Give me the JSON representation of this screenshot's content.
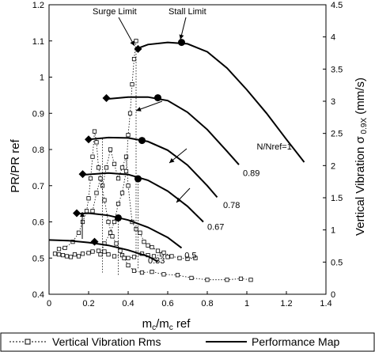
{
  "chart_data": {
    "type": "line",
    "xlabel": "ṁc/ṁc ref",
    "xlabel_main": "m",
    "xlabel_sub": "c",
    "xlabel_mid": "/m",
    "xlabel_sub2": "c",
    "xlabel_end": " ref",
    "ylabel": "PR/PR ref",
    "y2label": "Vertical Vibration σ 0.9X (mm/s)",
    "y2label_main": "Vertical Vibration σ",
    "y2label_sub": " 0.9X",
    "y2label_end": " (mm/s)",
    "xlim": [
      0,
      1.4
    ],
    "ylim": [
      0.4,
      1.2
    ],
    "y2lim": [
      0,
      4.5
    ],
    "x_ticks": [
      "0",
      "0.2",
      "0.4",
      "0.6",
      "0.8",
      "1",
      "1.2",
      "1.4"
    ],
    "y_ticks": [
      "0.4",
      "0.5",
      "0.6",
      "0.7",
      "0.8",
      "0.9",
      "1",
      "1.1",
      "1.2"
    ],
    "y2_ticks": [
      "0",
      "0.5",
      "1",
      "1.5",
      "2",
      "2.5",
      "3",
      "3.5",
      "4",
      "4.5"
    ],
    "speed_lines": [
      {
        "label": "0.33",
        "points": [
          [
            0.0,
            0.55
          ],
          [
            0.1,
            0.548
          ],
          [
            0.2,
            0.543
          ],
          [
            0.3,
            0.535
          ],
          [
            0.4,
            0.522
          ],
          [
            0.5,
            0.505
          ],
          [
            0.55,
            0.49
          ]
        ],
        "surge": [
          0.23,
          0.545
        ],
        "stall": null,
        "label_pos": [
          0.5,
          0.485
        ]
      },
      {
        "label": "0.5",
        "points": [
          [
            0.14,
            0.622
          ],
          [
            0.2,
            0.624
          ],
          [
            0.3,
            0.618
          ],
          [
            0.4,
            0.605
          ],
          [
            0.5,
            0.585
          ],
          [
            0.6,
            0.557
          ],
          [
            0.67,
            0.528
          ]
        ],
        "surge": [
          0.14,
          0.624
        ],
        "stall": [
          0.35,
          0.611
        ],
        "label_pos": [
          0.685,
          0.5
        ]
      },
      {
        "label": "0.67",
        "points": [
          [
            0.17,
            0.73
          ],
          [
            0.3,
            0.735
          ],
          [
            0.4,
            0.731
          ],
          [
            0.5,
            0.715
          ],
          [
            0.6,
            0.685
          ],
          [
            0.7,
            0.643
          ],
          [
            0.78,
            0.6
          ]
        ],
        "surge": [
          0.17,
          0.732
        ],
        "stall": [
          0.45,
          0.719
        ],
        "label_pos": [
          0.8,
          0.578
        ]
      },
      {
        "label": "0.78",
        "points": [
          [
            0.2,
            0.828
          ],
          [
            0.3,
            0.833
          ],
          [
            0.4,
            0.832
          ],
          [
            0.5,
            0.822
          ],
          [
            0.6,
            0.798
          ],
          [
            0.7,
            0.757
          ],
          [
            0.8,
            0.7
          ],
          [
            0.85,
            0.668
          ]
        ],
        "surge": [
          0.2,
          0.828
        ],
        "stall": [
          0.47,
          0.825
        ],
        "label_pos": [
          0.88,
          0.638
        ]
      },
      {
        "label": "0.89",
        "points": [
          [
            0.3,
            0.94
          ],
          [
            0.4,
            0.945
          ],
          [
            0.5,
            0.945
          ],
          [
            0.6,
            0.935
          ],
          [
            0.7,
            0.903
          ],
          [
            0.8,
            0.855
          ],
          [
            0.9,
            0.795
          ],
          [
            0.96,
            0.758
          ]
        ],
        "surge": [
          0.29,
          0.942
        ],
        "stall": [
          0.55,
          0.943
        ],
        "label_pos": [
          0.98,
          0.727
        ]
      },
      {
        "label": "N/Nref=1",
        "points": [
          [
            0.45,
            1.08
          ],
          [
            0.5,
            1.09
          ],
          [
            0.6,
            1.096
          ],
          [
            0.7,
            1.092
          ],
          [
            0.8,
            1.07
          ],
          [
            0.9,
            1.025
          ],
          [
            1.0,
            0.965
          ],
          [
            1.1,
            0.9
          ],
          [
            1.2,
            0.828
          ],
          [
            1.29,
            0.765
          ]
        ],
        "surge": [
          0.45,
          1.078
        ],
        "stall": [
          0.67,
          1.096
        ],
        "label_pos": [
          1.05,
          0.8
        ]
      }
    ],
    "vibration_series": [
      {
        "name": "Vertical Vibration Rms",
        "points": [
          [
            0.03,
            0.512
          ],
          [
            0.05,
            0.51
          ],
          [
            0.07,
            0.508
          ],
          [
            0.09,
            0.505
          ],
          [
            0.11,
            0.503
          ],
          [
            0.13,
            0.51
          ],
          [
            0.15,
            0.505
          ],
          [
            0.17,
            0.512
          ],
          [
            0.2,
            0.514
          ],
          [
            0.22,
            0.518
          ],
          [
            0.25,
            0.52
          ],
          [
            0.28,
            0.518
          ],
          [
            0.3,
            0.51
          ],
          [
            0.33,
            0.505
          ],
          [
            0.37,
            0.508
          ],
          [
            0.4,
            0.5
          ],
          [
            0.43,
            0.503
          ],
          [
            0.47,
            0.512
          ],
          [
            0.5,
            0.508
          ],
          [
            0.53,
            0.505
          ],
          [
            0.57,
            0.51
          ],
          [
            0.6,
            0.503
          ]
        ]
      },
      {
        "name": "Vertical Vibration Rms",
        "points": [
          [
            0.05,
            0.525
          ],
          [
            0.08,
            0.528
          ],
          [
            0.12,
            0.545
          ],
          [
            0.15,
            0.57
          ],
          [
            0.17,
            0.6
          ],
          [
            0.19,
            0.63
          ],
          [
            0.2,
            0.665
          ],
          [
            0.21,
            0.72
          ],
          [
            0.22,
            0.78
          ],
          [
            0.23,
            0.85
          ],
          [
            0.24,
            0.82
          ],
          [
            0.25,
            0.75
          ],
          [
            0.27,
            0.7
          ],
          [
            0.29,
            0.75
          ],
          [
            0.31,
            0.8
          ],
          [
            0.33,
            0.76
          ],
          [
            0.35,
            0.72
          ],
          [
            0.37,
            0.75
          ],
          [
            0.39,
            0.78
          ],
          [
            0.4,
            0.7
          ],
          [
            0.42,
            0.6
          ],
          [
            0.44,
            0.58
          ],
          [
            0.46,
            0.57
          ],
          [
            0.48,
            0.545
          ],
          [
            0.5,
            0.535
          ],
          [
            0.52,
            0.53
          ],
          [
            0.55,
            0.52
          ],
          [
            0.58,
            0.515
          ],
          [
            0.62,
            0.505
          ],
          [
            0.66,
            0.5
          ],
          [
            0.7,
            0.498
          ],
          [
            0.74,
            0.5
          ]
        ]
      },
      {
        "name": "Vertical Vibration Rms",
        "points": [
          [
            0.22,
            0.63
          ],
          [
            0.24,
            0.68
          ],
          [
            0.26,
            0.72
          ],
          [
            0.28,
            0.66
          ],
          [
            0.3,
            0.6
          ],
          [
            0.32,
            0.56
          ],
          [
            0.34,
            0.54
          ],
          [
            0.36,
            0.52
          ],
          [
            0.38,
            0.5
          ],
          [
            0.4,
            0.48
          ],
          [
            0.43,
            0.465
          ],
          [
            0.47,
            0.46
          ],
          [
            0.52,
            0.462
          ],
          [
            0.58,
            0.455
          ],
          [
            0.65,
            0.453
          ],
          [
            0.72,
            0.445
          ],
          [
            0.8,
            0.44
          ],
          [
            0.9,
            0.44
          ],
          [
            0.97,
            0.443
          ],
          [
            1.02,
            0.44
          ]
        ]
      },
      {
        "name": "Vertical Vibration Rms",
        "points": [
          [
            0.44,
            1.1
          ],
          [
            0.43,
            1.05
          ],
          [
            0.42,
            0.98
          ],
          [
            0.41,
            0.9
          ],
          [
            0.4,
            0.84
          ],
          [
            0.39,
            0.74
          ],
          [
            0.37,
            0.68
          ],
          [
            0.35,
            0.65
          ],
          [
            0.33,
            0.6
          ],
          [
            0.31,
            0.57
          ],
          [
            0.28,
            0.54
          ],
          [
            0.26,
            0.51
          ]
        ]
      }
    ],
    "annotations": [
      "Surge Limit",
      "Stall Limit"
    ],
    "legend": [
      "Vertical Vibration Rms",
      "Performance Map"
    ],
    "legend_position": "bottom"
  }
}
